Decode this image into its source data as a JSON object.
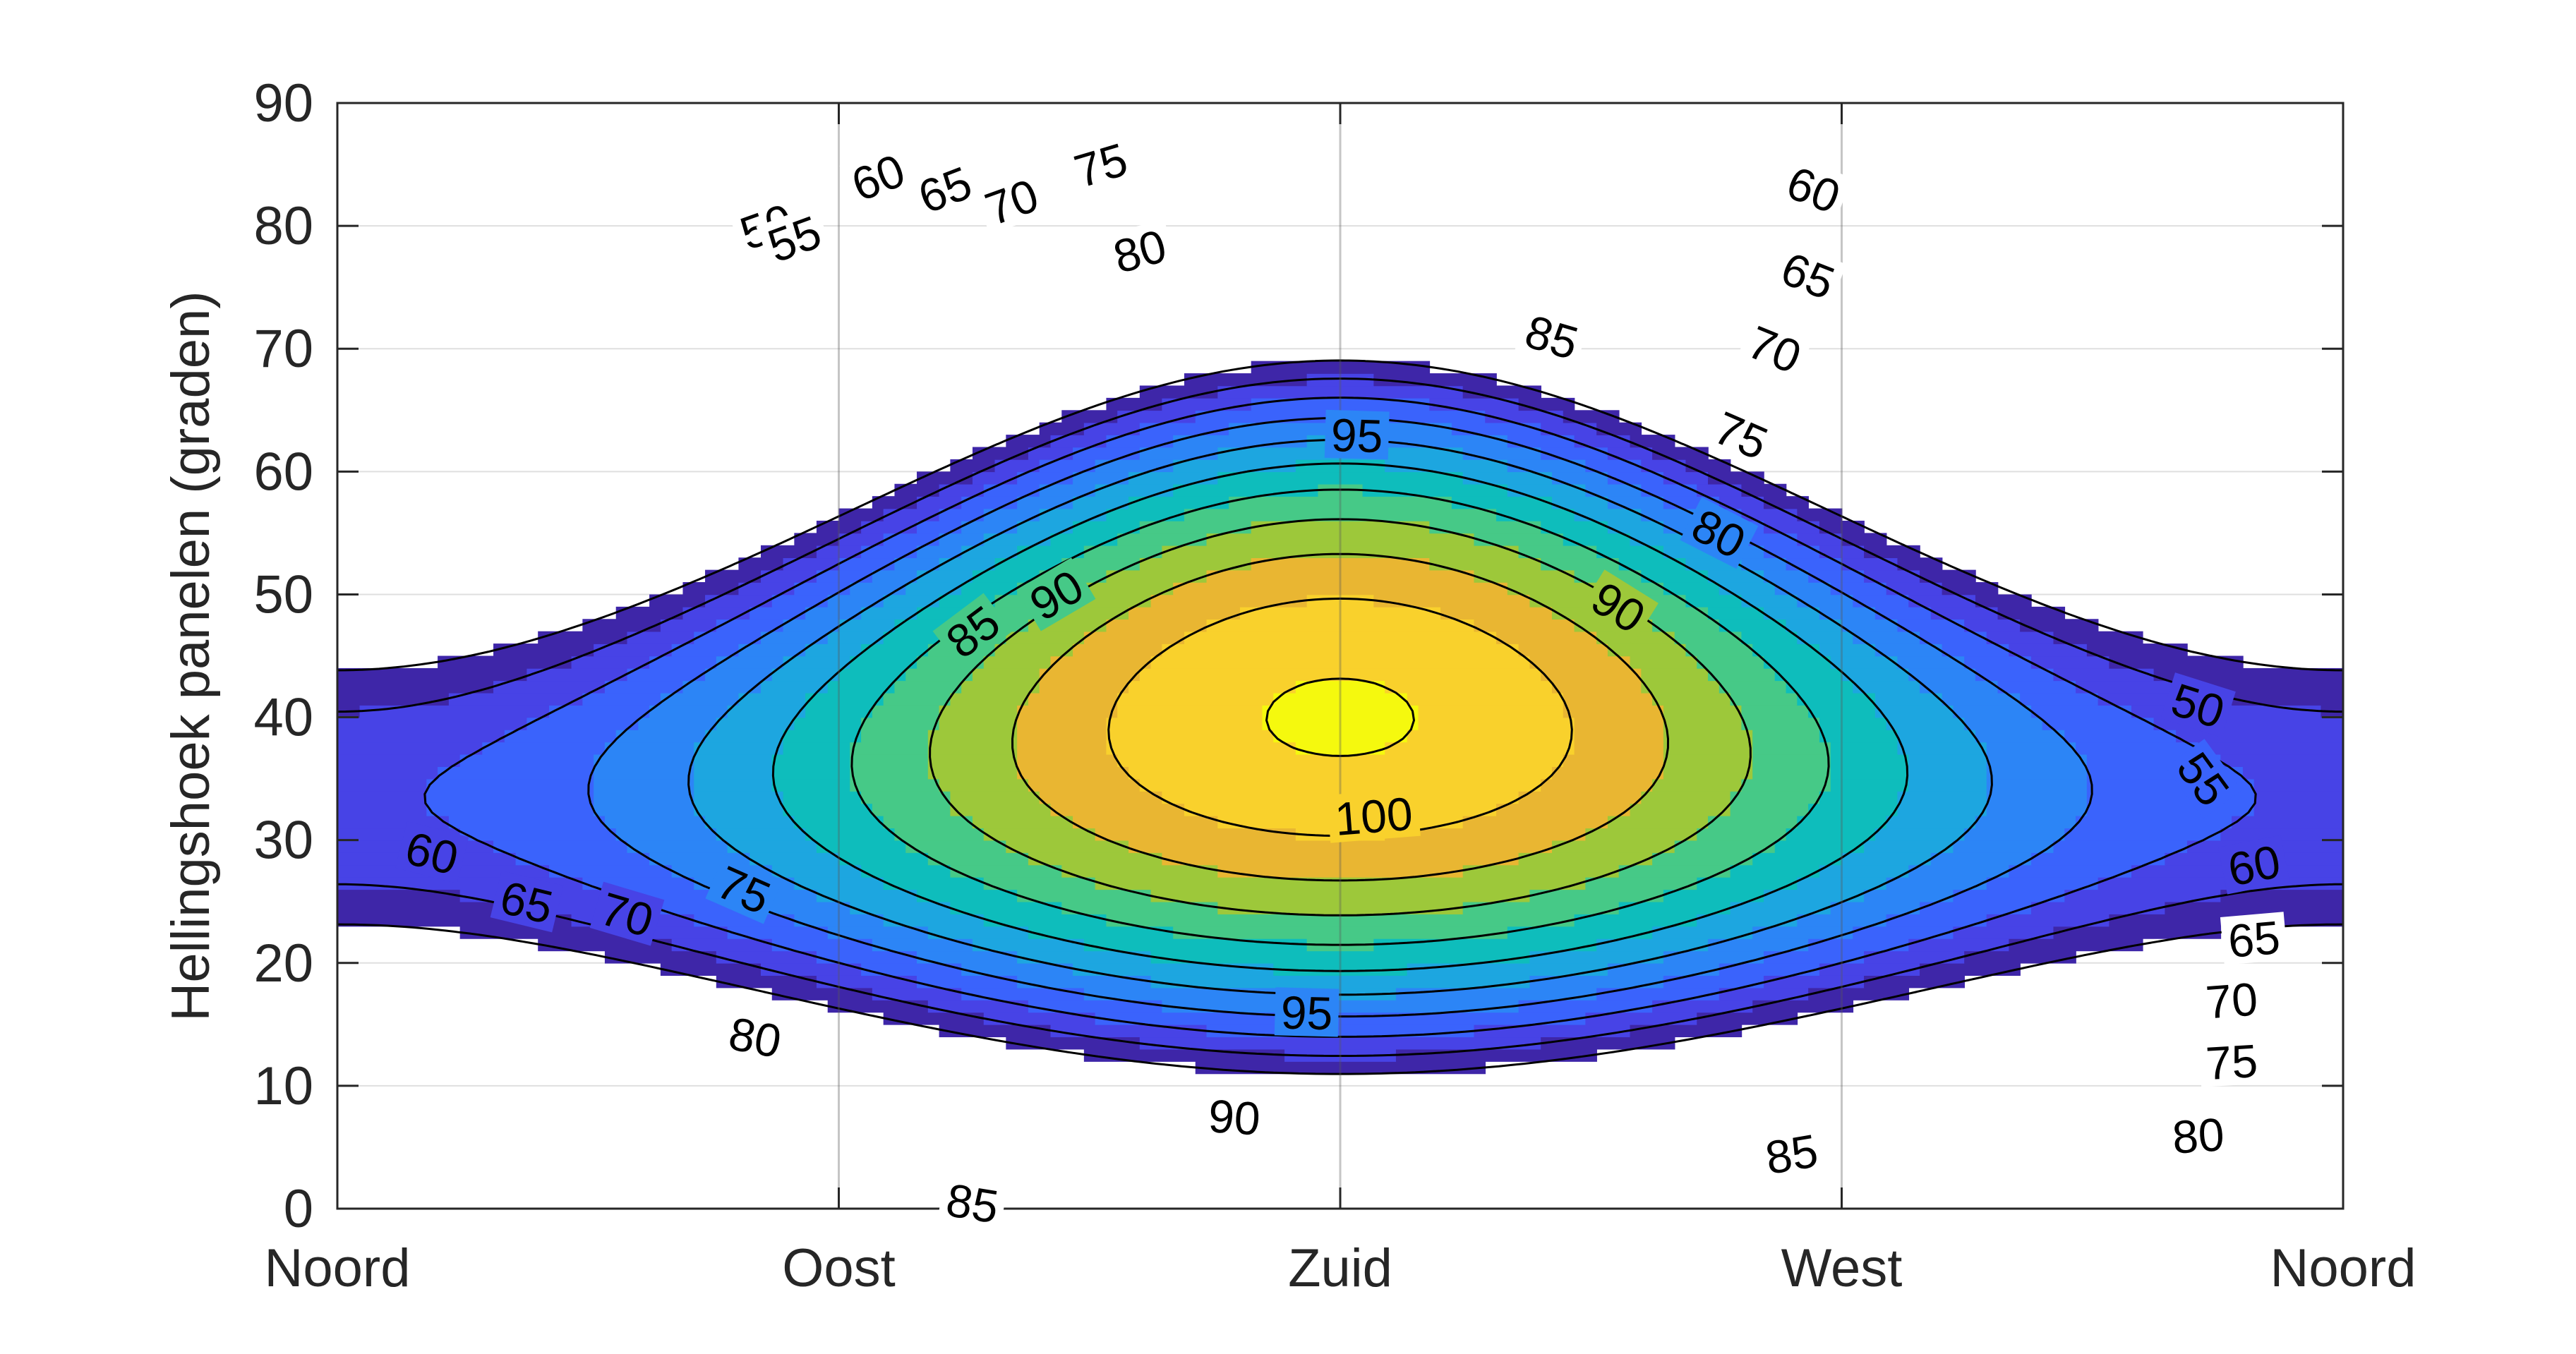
{
  "chart_data": {
    "type": "contour",
    "title": "",
    "xlabel": "",
    "ylabel": "Hellingshoek panelen (graden)",
    "x_tick_labels": [
      "Noord",
      "Oost",
      "Zuid",
      "West",
      "Noord"
    ],
    "x_ticks_deg": [
      0,
      90,
      180,
      270,
      360
    ],
    "xlim": [
      0,
      360
    ],
    "ylim": [
      0,
      90
    ],
    "y_ticks": [
      0,
      10,
      20,
      30,
      40,
      50,
      60,
      70,
      80,
      90
    ],
    "y_tick_labels": [
      "0",
      "10",
      "20",
      "30",
      "40",
      "50",
      "60",
      "70",
      "80",
      "90"
    ],
    "grid": true,
    "levels": [
      50,
      55,
      60,
      65,
      70,
      75,
      80,
      85,
      90,
      95,
      100
    ],
    "level_colors": [
      "#3e26a8",
      "#4743e6",
      "#3a63fc",
      "#2c85f6",
      "#1da6e0",
      "#0ebdbc",
      "#46c987",
      "#9dc83a",
      "#e9b632",
      "#f9d12c",
      "#f5f90e"
    ],
    "max_value": 100.6,
    "optimum": {
      "azimuth": 180,
      "tilt": 40
    },
    "contour_labels": [
      {
        "level": "50",
        "x": 77,
        "y": 80
      },
      {
        "level": "55",
        "x": 82,
        "y": 79
      },
      {
        "level": "60",
        "x": 97,
        "y": 84
      },
      {
        "level": "65",
        "x": 109,
        "y": 83
      },
      {
        "level": "70",
        "x": 121,
        "y": 82
      },
      {
        "level": "75",
        "x": 137,
        "y": 85
      },
      {
        "level": "80",
        "x": 144,
        "y": 78
      },
      {
        "level": "60",
        "x": 265,
        "y": 83
      },
      {
        "level": "65",
        "x": 264,
        "y": 76
      },
      {
        "level": "70",
        "x": 258,
        "y": 70
      },
      {
        "level": "75",
        "x": 252,
        "y": 63
      },
      {
        "level": "80",
        "x": 248,
        "y": 55
      },
      {
        "level": "85",
        "x": 218,
        "y": 71
      },
      {
        "level": "95",
        "x": 183,
        "y": 63
      },
      {
        "level": "90",
        "x": 129,
        "y": 50
      },
      {
        "level": "85",
        "x": 114,
        "y": 47
      },
      {
        "level": "90",
        "x": 230,
        "y": 49
      },
      {
        "level": "100",
        "x": 186,
        "y": 32
      },
      {
        "level": "95",
        "x": 174,
        "y": 16
      },
      {
        "level": "90",
        "x": 161,
        "y": 7.5
      },
      {
        "level": "85",
        "x": 114,
        "y": 0.5
      },
      {
        "level": "85",
        "x": 261,
        "y": 4.5
      },
      {
        "level": "60",
        "x": 17,
        "y": 29
      },
      {
        "level": "65",
        "x": 34,
        "y": 25
      },
      {
        "level": "70",
        "x": 52,
        "y": 24
      },
      {
        "level": "75",
        "x": 73,
        "y": 26
      },
      {
        "level": "80",
        "x": 75,
        "y": 14
      },
      {
        "level": "50",
        "x": 334,
        "y": 41
      },
      {
        "level": "55",
        "x": 335,
        "y": 35
      },
      {
        "level": "60",
        "x": 344,
        "y": 28
      },
      {
        "level": "65",
        "x": 344,
        "y": 22
      },
      {
        "level": "70",
        "x": 340,
        "y": 17
      },
      {
        "level": "75",
        "x": 340,
        "y": 12
      },
      {
        "level": "80",
        "x": 334,
        "y": 6
      }
    ]
  }
}
